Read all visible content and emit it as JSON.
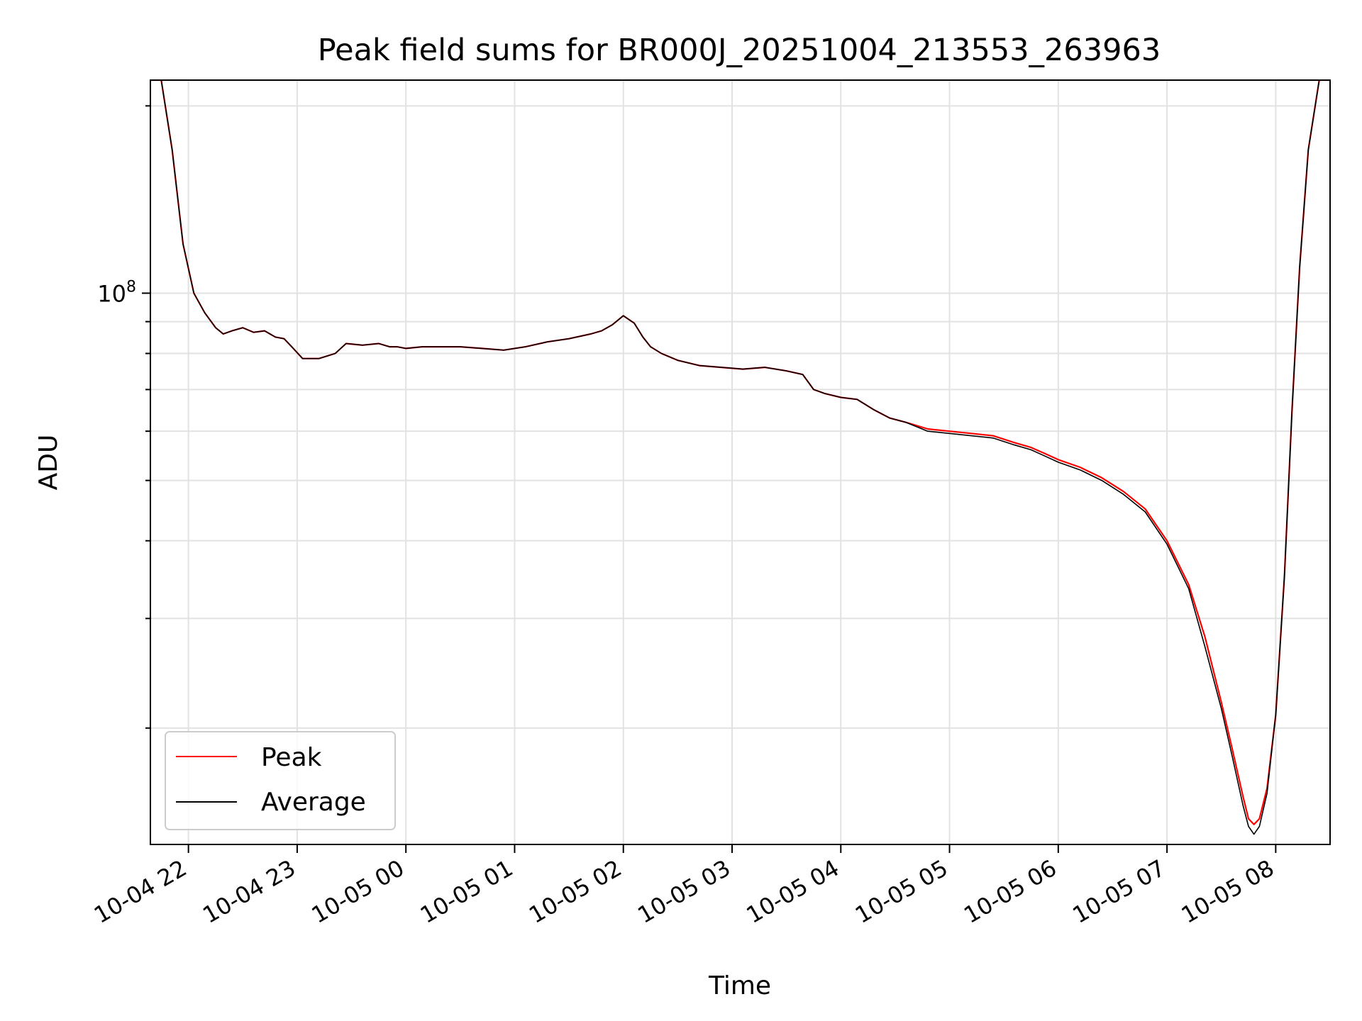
{
  "chart_data": {
    "type": "line",
    "title": "Peak field sums for BR000J_20251004_213553_263963",
    "xlabel": "Time",
    "ylabel": "ADU",
    "yscale": "log",
    "ylim": [
      13000000,
      220000000
    ],
    "xlim_hours": [
      -0.35,
      10.5
    ],
    "x_unit": "hours since 10-04 22:00",
    "grid": true,
    "legend_position": "lower-left",
    "x_ticks": [
      {
        "value": 0,
        "label": "10-04 22"
      },
      {
        "value": 1,
        "label": "10-04 23"
      },
      {
        "value": 2,
        "label": "10-05 00"
      },
      {
        "value": 3,
        "label": "10-05 01"
      },
      {
        "value": 4,
        "label": "10-05 02"
      },
      {
        "value": 5,
        "label": "10-05 03"
      },
      {
        "value": 6,
        "label": "10-05 04"
      },
      {
        "value": 7,
        "label": "10-05 05"
      },
      {
        "value": 8,
        "label": "10-05 06"
      },
      {
        "value": 9,
        "label": "10-05 07"
      },
      {
        "value": 10,
        "label": "10-05 08"
      }
    ],
    "y_major_ticks": [
      {
        "value": 100000000,
        "base": "10",
        "exp": "8"
      }
    ],
    "y_minor_ticks": [
      20000000,
      30000000,
      40000000,
      50000000,
      60000000,
      70000000,
      80000000,
      90000000,
      200000000
    ],
    "series": [
      {
        "name": "Peak",
        "color": "#ff0000",
        "x": [
          -0.35,
          -0.25,
          -0.15,
          -0.05,
          0.05,
          0.15,
          0.25,
          0.32,
          0.4,
          0.5,
          0.6,
          0.7,
          0.8,
          0.88,
          0.95,
          1.05,
          1.2,
          1.35,
          1.45,
          1.6,
          1.75,
          1.85,
          1.92,
          2.0,
          2.15,
          2.3,
          2.5,
          2.7,
          2.9,
          3.1,
          3.3,
          3.5,
          3.7,
          3.8,
          3.9,
          4.0,
          4.1,
          4.18,
          4.25,
          4.35,
          4.5,
          4.7,
          4.9,
          5.1,
          5.3,
          5.5,
          5.65,
          5.75,
          5.85,
          6.0,
          6.15,
          6.3,
          6.45,
          6.6,
          6.8,
          7.0,
          7.2,
          7.4,
          7.6,
          7.75,
          7.9,
          8.0,
          8.2,
          8.4,
          8.6,
          8.8,
          9.0,
          9.2,
          9.35,
          9.5,
          9.6,
          9.7,
          9.75,
          9.8,
          9.85,
          9.92,
          10.0,
          10.08,
          10.15,
          10.22,
          10.3,
          10.4,
          10.5
        ],
        "y": [
          220000000,
          220000000,
          170000000,
          120000000,
          100000000,
          93000000,
          88000000,
          86000000,
          87000000,
          88000000,
          86500000,
          87000000,
          85000000,
          84500000,
          82000000,
          78500000,
          78500000,
          80000000,
          83000000,
          82500000,
          83000000,
          82000000,
          82000000,
          81500000,
          82000000,
          82000000,
          82000000,
          81500000,
          81000000,
          82000000,
          83500000,
          84500000,
          86000000,
          87000000,
          89000000,
          92000000,
          89500000,
          85000000,
          82000000,
          80000000,
          78000000,
          76500000,
          76000000,
          75500000,
          76000000,
          75000000,
          74000000,
          70000000,
          69000000,
          68000000,
          67500000,
          65000000,
          63000000,
          62000000,
          60500000,
          60000000,
          59500000,
          59000000,
          57500000,
          56500000,
          55000000,
          54000000,
          52500000,
          50500000,
          48000000,
          45000000,
          40000000,
          34000000,
          28000000,
          22000000,
          18500000,
          15500000,
          14300000,
          14000000,
          14300000,
          16000000,
          21000000,
          35000000,
          65000000,
          110000000,
          170000000,
          220000000,
          220000000
        ]
      },
      {
        "name": "Average",
        "color": "#000000",
        "x": [
          -0.35,
          -0.25,
          -0.15,
          -0.05,
          0.05,
          0.15,
          0.25,
          0.32,
          0.4,
          0.5,
          0.6,
          0.7,
          0.8,
          0.88,
          0.95,
          1.05,
          1.2,
          1.35,
          1.45,
          1.6,
          1.75,
          1.85,
          1.92,
          2.0,
          2.15,
          2.3,
          2.5,
          2.7,
          2.9,
          3.1,
          3.3,
          3.5,
          3.7,
          3.8,
          3.9,
          4.0,
          4.1,
          4.18,
          4.25,
          4.35,
          4.5,
          4.7,
          4.9,
          5.1,
          5.3,
          5.5,
          5.65,
          5.75,
          5.85,
          6.0,
          6.15,
          6.3,
          6.45,
          6.6,
          6.8,
          7.0,
          7.2,
          7.4,
          7.6,
          7.75,
          7.9,
          8.0,
          8.2,
          8.4,
          8.6,
          8.8,
          9.0,
          9.2,
          9.35,
          9.5,
          9.6,
          9.7,
          9.75,
          9.8,
          9.85,
          9.92,
          10.0,
          10.08,
          10.15,
          10.22,
          10.3,
          10.4,
          10.5
        ],
        "y": [
          220000000,
          220000000,
          170000000,
          120000000,
          100000000,
          93000000,
          88000000,
          86000000,
          87000000,
          88000000,
          86500000,
          87000000,
          85000000,
          84500000,
          82000000,
          78500000,
          78500000,
          80000000,
          83000000,
          82500000,
          83000000,
          82000000,
          82000000,
          81500000,
          82000000,
          82000000,
          82000000,
          81500000,
          81000000,
          82000000,
          83500000,
          84500000,
          86000000,
          87000000,
          89000000,
          92000000,
          89500000,
          85000000,
          82000000,
          80000000,
          78000000,
          76500000,
          76000000,
          75500000,
          76000000,
          75000000,
          74000000,
          70000000,
          69000000,
          68000000,
          67500000,
          65000000,
          63000000,
          62000000,
          60000000,
          59500000,
          59000000,
          58500000,
          57000000,
          56000000,
          54500000,
          53500000,
          52000000,
          50000000,
          47500000,
          44500000,
          39500000,
          33500000,
          27000000,
          21500000,
          18000000,
          15000000,
          13900000,
          13500000,
          13900000,
          15700000,
          21000000,
          35000000,
          65000000,
          110000000,
          170000000,
          220000000,
          220000000
        ]
      }
    ]
  }
}
